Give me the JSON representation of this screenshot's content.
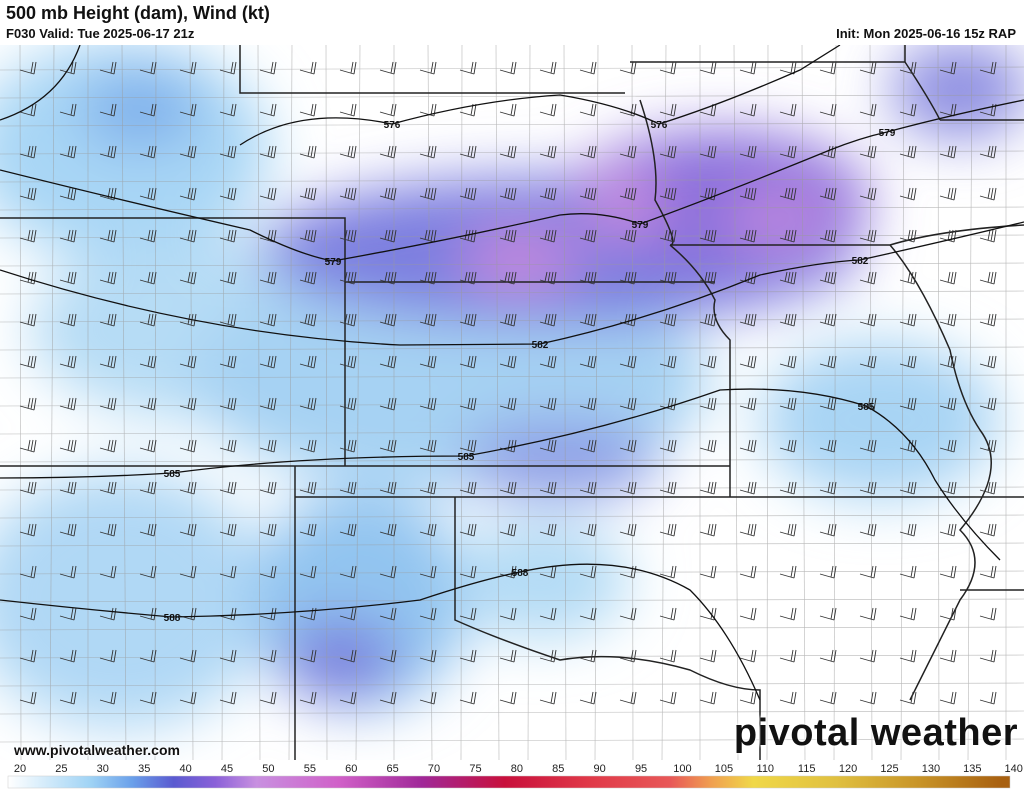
{
  "header": {
    "title": "500 mb Height (dam), Wind (kt)",
    "valid": "F030 Valid: Tue 2025-06-17 21z",
    "init": "Init: Mon 2025-06-16 15z RAP"
  },
  "contour_labels": [
    "576",
    "576",
    "579",
    "579",
    "579",
    "582",
    "582",
    "585",
    "585",
    "585",
    "588",
    "588"
  ],
  "footer": {
    "site": "www.pivotalweather.com",
    "brand": "pivotal weather"
  },
  "colorbar": {
    "units": "kt",
    "ticks": [
      "20",
      "25",
      "30",
      "35",
      "40",
      "45",
      "50",
      "55",
      "60",
      "65",
      "70",
      "75",
      "80",
      "85",
      "90",
      "95",
      "100",
      "105",
      "110",
      "115",
      "120",
      "125",
      "130",
      "135",
      "140"
    ],
    "stops": [
      {
        "v": 20,
        "c": "#ffffff"
      },
      {
        "v": 30,
        "c": "#9fd3f5"
      },
      {
        "v": 35,
        "c": "#6aa0ea"
      },
      {
        "v": 40,
        "c": "#5a5ad0"
      },
      {
        "v": 45,
        "c": "#8a60d8"
      },
      {
        "v": 50,
        "c": "#c890e0"
      },
      {
        "v": 60,
        "c": "#d060c8"
      },
      {
        "v": 70,
        "c": "#a02898"
      },
      {
        "v": 80,
        "c": "#c8103c"
      },
      {
        "v": 90,
        "c": "#e03848"
      },
      {
        "v": 100,
        "c": "#e85858"
      },
      {
        "v": 105,
        "c": "#f0a050"
      },
      {
        "v": 110,
        "c": "#f0d848"
      },
      {
        "v": 120,
        "c": "#e0c040"
      },
      {
        "v": 130,
        "c": "#c89428"
      },
      {
        "v": 140,
        "c": "#a86010"
      }
    ]
  }
}
